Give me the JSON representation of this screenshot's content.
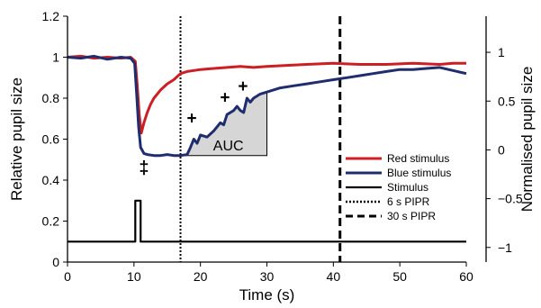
{
  "chart_data": {
    "type": "line",
    "xlabel": "Time (s)",
    "ylabel_left": "Relative pupil size",
    "ylabel_right": "Normalised pupil size",
    "xlim": [
      0,
      60
    ],
    "ylim_left": [
      0,
      1.2
    ],
    "ylim_right": [
      -1.15,
      1.37
    ],
    "x_ticks": [
      "0",
      "10",
      "20",
      "30",
      "40",
      "50",
      "60"
    ],
    "y_ticks_left": [
      "0",
      "0.2",
      "0.4",
      "0.6",
      "0.8",
      "1",
      "1.2"
    ],
    "y_ticks_right": [
      "−1",
      "−0.5",
      "0",
      "0.5",
      "1"
    ],
    "grid": false,
    "legend_position": "right",
    "colors": {
      "red": "#cc1f24",
      "blue": "#1f2d6e",
      "stimulus": "#000000",
      "auc_fill": "#d6d6d6"
    },
    "series": [
      {
        "name": "Red stimulus",
        "x": [
          0,
          2,
          4,
          6,
          8,
          9.5,
          10.2,
          10.5,
          10.8,
          11.1,
          11.5,
          12,
          12.5,
          13,
          14,
          15,
          16,
          17,
          18,
          19,
          20,
          22,
          24,
          26,
          28,
          30,
          33,
          36,
          40,
          44,
          48,
          52,
          56,
          58,
          60
        ],
        "y": [
          1.0,
          1.005,
          0.995,
          1.0,
          0.995,
          1.0,
          0.98,
          0.86,
          0.72,
          0.63,
          0.68,
          0.73,
          0.77,
          0.8,
          0.84,
          0.87,
          0.89,
          0.92,
          0.93,
          0.935,
          0.94,
          0.945,
          0.95,
          0.955,
          0.95,
          0.955,
          0.96,
          0.965,
          0.97,
          0.965,
          0.965,
          0.97,
          0.965,
          0.97,
          0.97
        ]
      },
      {
        "name": "Blue stimulus",
        "x": [
          0,
          2,
          4,
          6,
          8,
          9.5,
          10.1,
          10.4,
          10.7,
          11,
          11.5,
          12,
          13,
          14,
          15,
          16,
          17,
          18,
          18.5,
          19,
          19.5,
          20,
          21,
          22,
          23,
          23.5,
          24,
          25,
          25.5,
          26,
          26.5,
          27,
          27.5,
          28,
          29,
          30,
          32,
          34,
          36,
          38,
          40,
          42,
          44,
          46,
          48,
          50,
          52,
          54,
          56,
          58,
          60
        ],
        "y": [
          1.0,
          0.995,
          1.005,
          0.99,
          1.0,
          0.995,
          0.97,
          0.82,
          0.66,
          0.56,
          0.53,
          0.525,
          0.52,
          0.52,
          0.525,
          0.52,
          0.52,
          0.525,
          0.56,
          0.6,
          0.58,
          0.62,
          0.61,
          0.64,
          0.68,
          0.67,
          0.72,
          0.74,
          0.76,
          0.74,
          0.73,
          0.8,
          0.78,
          0.8,
          0.82,
          0.83,
          0.85,
          0.86,
          0.87,
          0.88,
          0.89,
          0.9,
          0.91,
          0.92,
          0.93,
          0.94,
          0.94,
          0.945,
          0.95,
          0.935,
          0.92
        ]
      },
      {
        "name": "Stimulus",
        "x": [
          0,
          10.2,
          10.2,
          11.0,
          11.0,
          60
        ],
        "y": [
          0.1,
          0.1,
          0.3,
          0.3,
          0.1,
          0.1
        ]
      }
    ],
    "vlines": [
      {
        "name": "6 s PIPR",
        "x": 17,
        "style": "dotted"
      },
      {
        "name": "30 s PIPR",
        "x": 41,
        "style": "dashed"
      }
    ],
    "auc": {
      "label": "AUC",
      "x_start": 17,
      "x_end": 30,
      "baseline": 0.52
    },
    "annotations": [
      {
        "text": "‡",
        "x": 11.5,
        "y": 0.43
      },
      {
        "text": "+",
        "x": 18.7,
        "y": 0.675
      },
      {
        "text": "+",
        "x": 23.7,
        "y": 0.775
      },
      {
        "text": "+",
        "x": 26.4,
        "y": 0.83
      }
    ],
    "legend": [
      "Red stimulus",
      "Blue stimulus",
      "Stimulus",
      "6 s PIPR",
      "30 s PIPR"
    ]
  }
}
